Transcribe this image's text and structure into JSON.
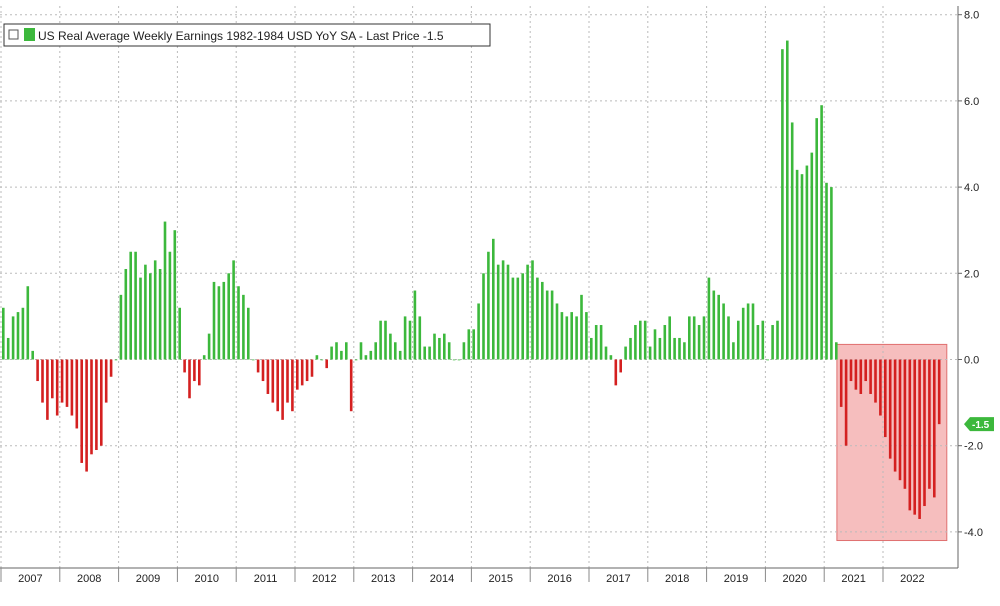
{
  "chart_data": {
    "type": "bar",
    "title": "US Real Average Weekly Earnings 1982-1984 USD YoY SA - Last Price -1.5",
    "legend": {
      "label": "US Real Average Weekly Earnings 1982-1984 USD YoY SA - Last Price -1.5",
      "placement": "top-left"
    },
    "last_price": "-1.5",
    "xlabel": "",
    "ylabel": "",
    "ylim": [
      -4.5,
      8.2
    ],
    "yticks": [
      8.0,
      6.0,
      4.0,
      2.0,
      0.0,
      -2.0,
      -4.0
    ],
    "ytick_labels": [
      "8.0",
      "6.0",
      "4.0",
      "2.0",
      "0.0",
      "-2.0",
      "-4.0"
    ],
    "y_axis_side": "right",
    "grid": true,
    "years": [
      "2007",
      "2008",
      "2009",
      "2010",
      "2011",
      "2012",
      "2013",
      "2014",
      "2015",
      "2016",
      "2017",
      "2018",
      "2019",
      "2020",
      "2021",
      "2022"
    ],
    "positive_color": "#3cb83c",
    "negative_color": "#d42020",
    "highlight": {
      "x_start": "2021-04",
      "x_end": "2022-12",
      "y_range": [
        -4.2,
        0.35
      ],
      "color": "#f5b3b3"
    },
    "series": [
      {
        "name": "US Real Average Weekly Earnings 1982-1984 USD YoY SA",
        "dates": [
          "2007-01",
          "2007-02",
          "2007-03",
          "2007-04",
          "2007-05",
          "2007-06",
          "2007-07",
          "2007-08",
          "2007-09",
          "2007-10",
          "2007-11",
          "2007-12",
          "2008-01",
          "2008-02",
          "2008-03",
          "2008-04",
          "2008-05",
          "2008-06",
          "2008-07",
          "2008-08",
          "2008-09",
          "2008-10",
          "2008-11",
          "2008-12",
          "2009-01",
          "2009-02",
          "2009-03",
          "2009-04",
          "2009-05",
          "2009-06",
          "2009-07",
          "2009-08",
          "2009-09",
          "2009-10",
          "2009-11",
          "2009-12",
          "2010-01",
          "2010-02",
          "2010-03",
          "2010-04",
          "2010-05",
          "2010-06",
          "2010-07",
          "2010-08",
          "2010-09",
          "2010-10",
          "2010-11",
          "2010-12",
          "2011-01",
          "2011-02",
          "2011-03",
          "2011-04",
          "2011-05",
          "2011-06",
          "2011-07",
          "2011-08",
          "2011-09",
          "2011-10",
          "2011-11",
          "2011-12",
          "2012-01",
          "2012-02",
          "2012-03",
          "2012-04",
          "2012-05",
          "2012-06",
          "2012-07",
          "2012-08",
          "2012-09",
          "2012-10",
          "2012-11",
          "2012-12",
          "2013-01",
          "2013-02",
          "2013-03",
          "2013-04",
          "2013-05",
          "2013-06",
          "2013-07",
          "2013-08",
          "2013-09",
          "2013-10",
          "2013-11",
          "2013-12",
          "2014-01",
          "2014-02",
          "2014-03",
          "2014-04",
          "2014-05",
          "2014-06",
          "2014-07",
          "2014-08",
          "2014-09",
          "2014-10",
          "2014-11",
          "2014-12",
          "2015-01",
          "2015-02",
          "2015-03",
          "2015-04",
          "2015-05",
          "2015-06",
          "2015-07",
          "2015-08",
          "2015-09",
          "2015-10",
          "2015-11",
          "2015-12",
          "2016-01",
          "2016-02",
          "2016-03",
          "2016-04",
          "2016-05",
          "2016-06",
          "2016-07",
          "2016-08",
          "2016-09",
          "2016-10",
          "2016-11",
          "2016-12",
          "2017-01",
          "2017-02",
          "2017-03",
          "2017-04",
          "2017-05",
          "2017-06",
          "2017-07",
          "2017-08",
          "2017-09",
          "2017-10",
          "2017-11",
          "2017-12",
          "2018-01",
          "2018-02",
          "2018-03",
          "2018-04",
          "2018-05",
          "2018-06",
          "2018-07",
          "2018-08",
          "2018-09",
          "2018-10",
          "2018-11",
          "2018-12",
          "2019-01",
          "2019-02",
          "2019-03",
          "2019-04",
          "2019-05",
          "2019-06",
          "2019-07",
          "2019-08",
          "2019-09",
          "2019-10",
          "2019-11",
          "2019-12",
          "2020-01",
          "2020-02",
          "2020-03",
          "2020-04",
          "2020-05",
          "2020-06",
          "2020-07",
          "2020-08",
          "2020-09",
          "2020-10",
          "2020-11",
          "2020-12",
          "2021-01",
          "2021-02",
          "2021-03",
          "2021-04",
          "2021-05",
          "2021-06",
          "2021-07",
          "2021-08",
          "2021-09",
          "2021-10",
          "2021-11",
          "2021-12",
          "2022-01",
          "2022-02",
          "2022-03",
          "2022-04",
          "2022-05",
          "2022-06",
          "2022-07",
          "2022-08",
          "2022-09",
          "2022-10",
          "2022-11",
          "2022-12"
        ],
        "values": [
          1.2,
          0.5,
          1.0,
          1.1,
          1.2,
          1.7,
          0.2,
          -0.5,
          -1.0,
          -1.4,
          -0.9,
          -1.3,
          -1.0,
          -1.1,
          -1.3,
          -1.6,
          -2.4,
          -2.6,
          -2.2,
          -2.1,
          -2.0,
          -1.0,
          -0.4,
          0.0,
          1.5,
          2.1,
          2.5,
          2.5,
          1.9,
          2.2,
          2.0,
          2.3,
          2.1,
          3.2,
          2.5,
          3.0,
          1.2,
          -0.3,
          -0.9,
          -0.5,
          -0.6,
          0.1,
          0.6,
          1.8,
          1.7,
          1.8,
          2.0,
          2.3,
          1.7,
          1.5,
          1.2,
          0.0,
          -0.3,
          -0.5,
          -0.8,
          -1.0,
          -1.2,
          -1.4,
          -1.0,
          -1.2,
          -0.7,
          -0.6,
          -0.5,
          -0.4,
          0.1,
          0.0,
          -0.2,
          0.3,
          0.4,
          0.2,
          0.4,
          -1.2,
          0.0,
          0.4,
          0.1,
          0.2,
          0.4,
          0.9,
          0.9,
          0.6,
          0.4,
          0.2,
          1.0,
          0.9,
          1.6,
          1.0,
          0.3,
          0.3,
          0.6,
          0.5,
          0.6,
          0.4,
          0.0,
          0.0,
          0.4,
          0.7,
          0.7,
          1.3,
          2.0,
          2.5,
          2.8,
          2.2,
          2.3,
          2.2,
          1.9,
          1.9,
          2.0,
          2.2,
          2.3,
          1.9,
          1.8,
          1.6,
          1.6,
          1.3,
          1.1,
          1.0,
          1.1,
          1.0,
          1.5,
          1.1,
          0.5,
          0.8,
          0.8,
          0.3,
          0.1,
          -0.6,
          -0.3,
          0.3,
          0.5,
          0.8,
          0.9,
          0.9,
          0.3,
          0.7,
          0.5,
          0.8,
          1.0,
          0.5,
          0.5,
          0.4,
          1.0,
          1.0,
          0.8,
          1.0,
          1.9,
          1.6,
          1.5,
          1.3,
          1.0,
          0.4,
          0.9,
          1.2,
          1.3,
          1.3,
          0.8,
          0.9,
          0.0,
          0.8,
          0.9,
          7.2,
          7.4,
          5.5,
          4.4,
          4.3,
          4.5,
          4.8,
          5.6,
          5.9,
          4.1,
          4.0,
          0.4,
          -1.1,
          -2.0,
          -0.5,
          -0.7,
          -0.8,
          -0.5,
          -0.8,
          -1.0,
          -1.3,
          -1.8,
          -2.3,
          -2.6,
          -2.8,
          -3.0,
          -3.5,
          -3.6,
          -3.7,
          -3.4,
          -3.0,
          -3.2,
          -1.5
        ]
      }
    ]
  }
}
